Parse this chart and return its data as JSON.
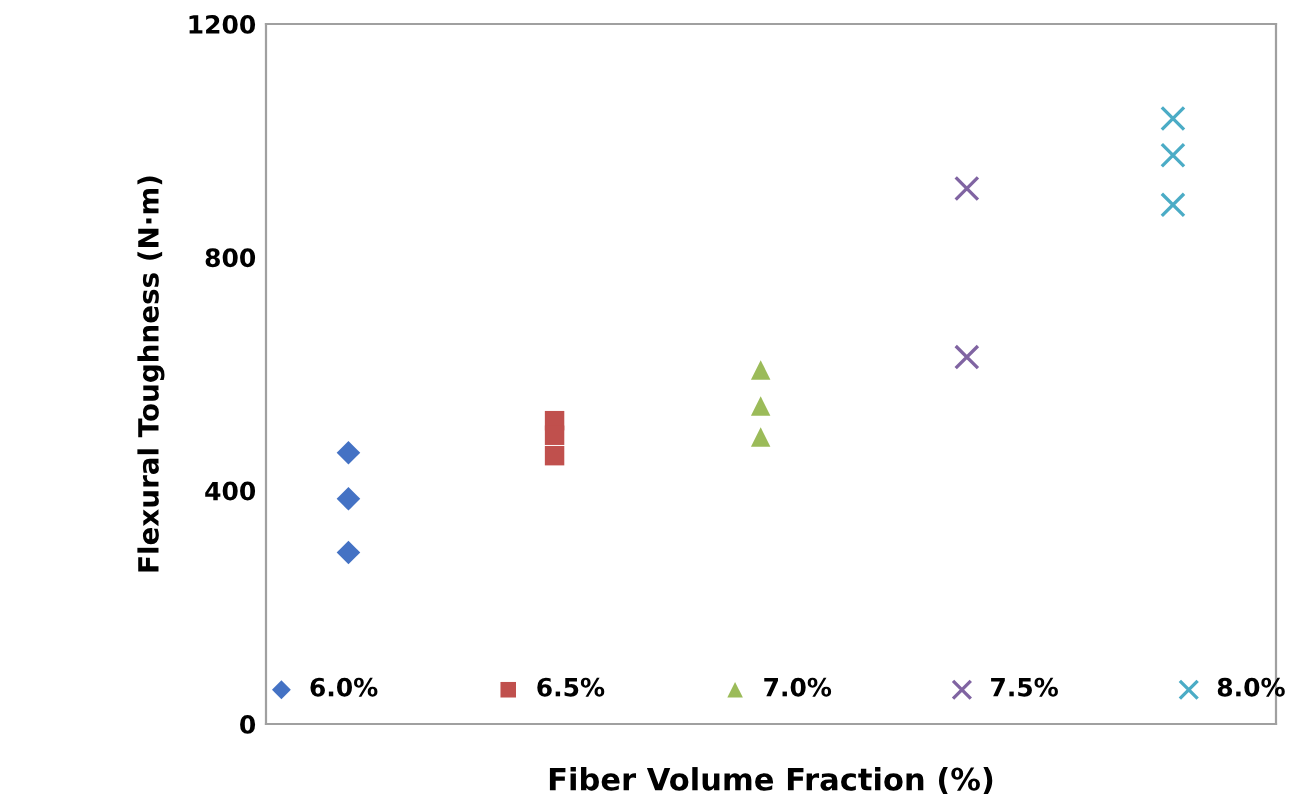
{
  "chart_data": {
    "type": "scatter",
    "xlabel": "Fiber Volume Fraction (%)",
    "ylabel": "Flexural Toughness (N·m)",
    "categories": [
      null,
      null,
      null,
      null,
      null
    ],
    "ylim": [
      0,
      1200
    ],
    "yticks": [
      0,
      400,
      800,
      1200
    ],
    "grid": false,
    "legend": "bottom",
    "series": [
      {
        "name": "6.0%",
        "color": "#4472c4",
        "marker": "diamond",
        "values": [
          465,
          null,
          null,
          null,
          null
        ]
      },
      {
        "color": "#4472c4",
        "marker": "diamond",
        "values": [
          386,
          null,
          null,
          null,
          null
        ]
      },
      {
        "color": "#4472c4",
        "marker": "diamond",
        "values": [
          294,
          null,
          null,
          null,
          null
        ]
      },
      {
        "name": "6.5%",
        "color": "#c0504d",
        "marker": "square",
        "values": [
          null,
          520,
          null,
          null,
          null
        ]
      },
      {
        "color": "#c0504d",
        "marker": "square",
        "values": [
          null,
          495,
          null,
          null,
          null
        ]
      },
      {
        "color": "#c0504d",
        "marker": "square",
        "values": [
          null,
          460,
          null,
          null,
          null
        ]
      },
      {
        "name": "7.0%",
        "color": "#9bbb59",
        "marker": "triangle",
        "values": [
          null,
          null,
          607,
          null,
          null
        ]
      },
      {
        "color": "#9bbb59",
        "marker": "triangle",
        "values": [
          null,
          null,
          545,
          null,
          null
        ]
      },
      {
        "color": "#9bbb59",
        "marker": "triangle",
        "values": [
          null,
          null,
          492,
          null,
          null
        ]
      },
      {
        "name": "7.5%",
        "color": "#8064a2",
        "marker": "cross",
        "values": [
          null,
          null,
          null,
          918,
          null
        ]
      },
      {
        "color": "#8064a2",
        "marker": "cross",
        "values": [
          null,
          null,
          null,
          629,
          null
        ]
      },
      {
        "name": "8.0%",
        "color": "#4bacc6",
        "marker": "cross",
        "values": [
          null,
          null,
          null,
          null,
          1038
        ]
      },
      {
        "color": "#4bacc6",
        "marker": "cross",
        "values": [
          null,
          null,
          null,
          null,
          975
        ]
      },
      {
        "color": "#4bacc6",
        "marker": "cross",
        "values": [
          null,
          null,
          null,
          null,
          890
        ]
      }
    ]
  }
}
